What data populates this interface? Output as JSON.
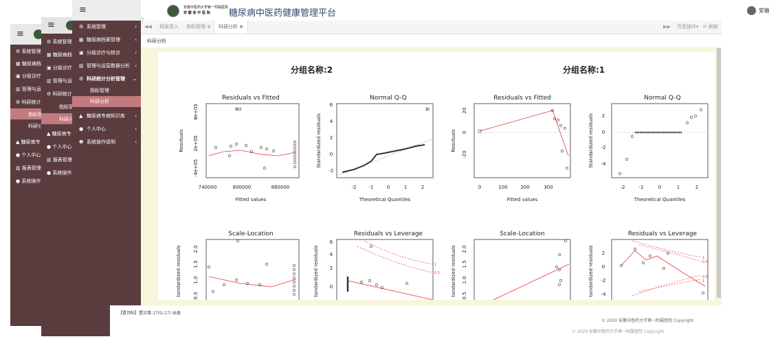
{
  "header": {
    "logo_text_line1": "安徽中医药大学第一附属医院",
    "logo_text_line2": "安 徽 省 中 医 院",
    "app_title": "糖尿病中医药健康管理平台",
    "user_name": "安徽省中医院"
  },
  "sidebar": {
    "items": [
      {
        "label": "系统管理",
        "icon": "gear-icon"
      },
      {
        "label": "糖尿病档案管理",
        "icon": "list-icon"
      },
      {
        "label": "分级诊疗与转诊",
        "icon": "building-icon"
      },
      {
        "label": "管理与运营数据分析",
        "icon": "bar-chart-icon"
      },
      {
        "label": "科研统计分析管理",
        "icon": "gear-icon"
      }
    ],
    "sub_items": [
      "指标管理",
      "科研分析"
    ],
    "items_after": [
      {
        "label": "糖尿病专病知识库",
        "icon": "graduation-cap-icon"
      },
      {
        "label": "个人中心",
        "icon": "user-icon"
      },
      {
        "label": "系统操作说明",
        "icon": "info-icon"
      }
    ]
  },
  "ghost_sidebar": {
    "items_short": [
      "系统管理",
      "糖尿病档",
      "分级诊疗",
      "管理与运",
      "科研统计",
      "指标管",
      "科研分",
      "糖尿病专",
      "个人中心",
      "报表管理",
      "系统操作"
    ],
    "items_mid": [
      "系统管理",
      "糖尿病档",
      "分级诊疗",
      "管理与运",
      "科研统计",
      "指标管",
      "科研分",
      "糖尿病专",
      "个人中心",
      "报表管理",
      "系统操作"
    ]
  },
  "tabs": {
    "nav_back": "◀◀",
    "tab1": "档案录入",
    "tab2": "指标管理 ⊗",
    "tab3": "科研分析 ⊗",
    "nav_forward": "▶▶",
    "page_ops": "页签操作▾",
    "refresh": "⟳ 刷新"
  },
  "breadcrumb": "科研分析",
  "groups": {
    "left": "分组名称:2",
    "right": "分组名称:1"
  },
  "plots": {
    "residuals_vs_fitted": "Residuals vs Fitted",
    "normal_qq": "Normal Q-Q",
    "scale_location": "Scale-Location",
    "residuals_vs_leverage": "Residuals vs Leverage",
    "fitted_values": "Fitted values",
    "theoretical_quantiles": "Theoretical Quantiles",
    "residuals": "Residuals",
    "standardized_residuals": "Standardized residuals",
    "sqrt_std_residuals": "tandardized residuals"
  },
  "footer": {
    "copyright": "© 2020 安徽中医药大学第一附属医院 Copyright",
    "copyright_ghost": "© 2020 安徽中医药大学第一附属医院 Copyright",
    "bottom_text": "【置顶帖】置诊事-17(G-17)  出类"
  },
  "colors": {
    "sidebar_bg": "#5b3c3e",
    "accent": "#c27a7f",
    "panel_bg": "#f7f5dc"
  }
}
